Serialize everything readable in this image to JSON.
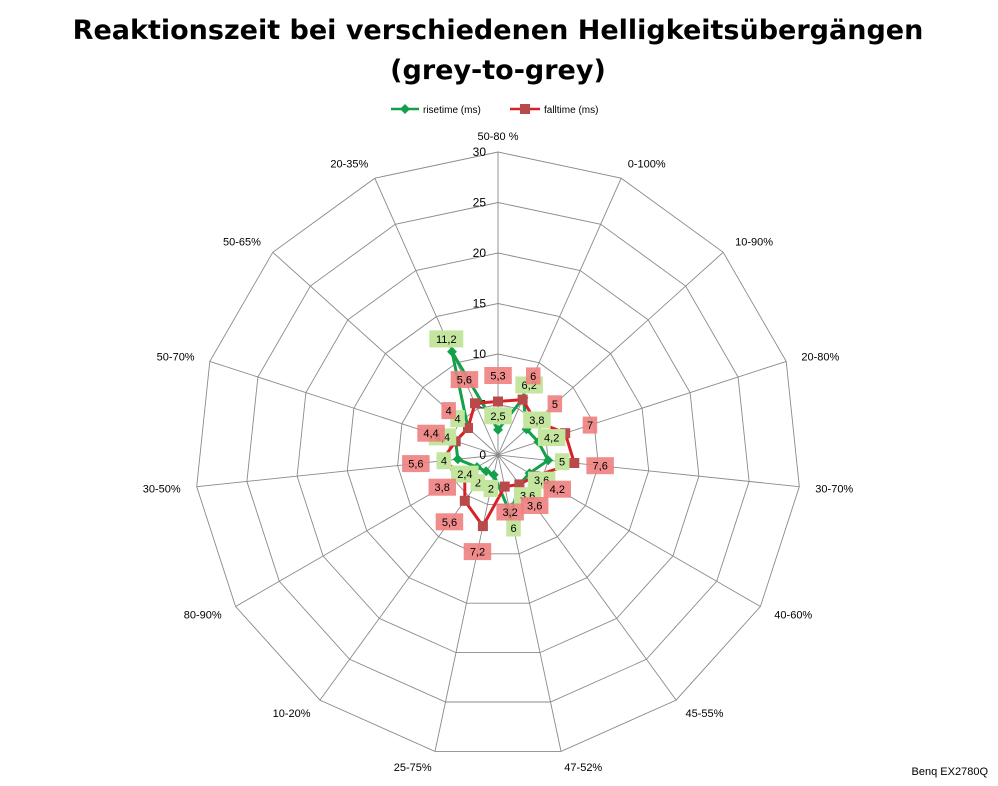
{
  "chart_data": {
    "type": "radar",
    "title_line1": "Reaktionszeit bei verschiedenen Helligkeitsübergängen",
    "title_line2": "(grey-to-grey)",
    "categories": [
      "50-80 %",
      "0-100%",
      "10-90%",
      "20-80%",
      "30-70%",
      "40-60%",
      "45-55%",
      "47-52%",
      "25-75%",
      "10-20%",
      "80-90%",
      "30-50%",
      "50-70%",
      "50-65%",
      "20-35%"
    ],
    "ylim": [
      0,
      30
    ],
    "ticks": [
      0,
      5,
      10,
      15,
      20,
      25,
      30
    ],
    "ticks_text": [
      "0",
      "5",
      "10",
      "15",
      "20",
      "25",
      "30"
    ],
    "grid": true,
    "legend_position": "top",
    "series": [
      {
        "name": "risetime (ms)",
        "color": "#12a04a",
        "label_bg": "#c4e59e",
        "marker": "diamond",
        "values": [
          2.5,
          6.2,
          3.8,
          4.2,
          5,
          3.6,
          3.6,
          6,
          2,
          2,
          2.4,
          4,
          4.4,
          4,
          11.2
        ],
        "labels": [
          "2,5",
          "6,2",
          "3,8",
          "4,2",
          "5",
          "3,6",
          "3,6",
          "6",
          "2",
          "2",
          "2,4",
          "4",
          "4,4",
          "4",
          "11,2"
        ]
      },
      {
        "name": "falltime (ms)",
        "color": "#d92027",
        "label_bg": "#f08080",
        "marker": "square",
        "values": [
          5.3,
          6,
          5,
          7,
          7.6,
          4.2,
          3.6,
          3.2,
          7.2,
          5.6,
          3.8,
          5.6,
          4.4,
          4,
          5.6
        ],
        "labels": [
          "5,3",
          "6",
          "5",
          "7",
          "7,6",
          "4,2",
          "3,6",
          "3,2",
          "7,2",
          "5,6",
          "3,8",
          "5,6",
          "4,4",
          "4",
          "5,6"
        ]
      }
    ]
  },
  "credit": "Benq EX2780Q"
}
